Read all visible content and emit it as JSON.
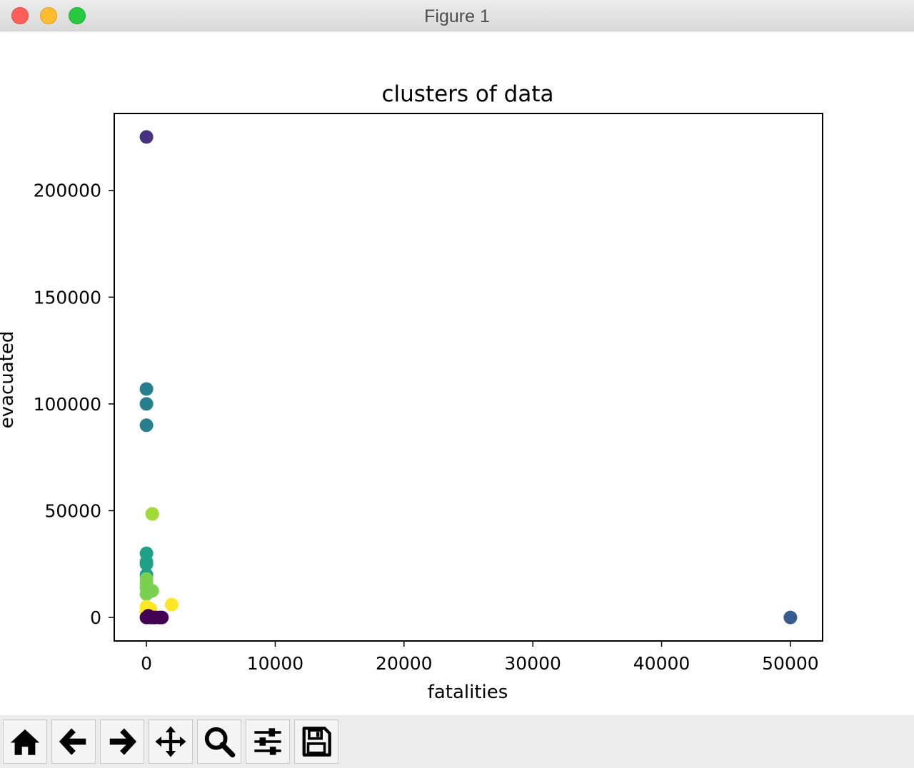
{
  "window": {
    "title": "Figure 1"
  },
  "toolbar": {
    "buttons": [
      {
        "name": "home",
        "icon": "home-icon"
      },
      {
        "name": "back",
        "icon": "arrow-left-icon"
      },
      {
        "name": "forward",
        "icon": "arrow-right-icon"
      },
      {
        "name": "pan",
        "icon": "move-icon"
      },
      {
        "name": "zoom",
        "icon": "search-icon"
      },
      {
        "name": "configure-subplots",
        "icon": "sliders-icon"
      },
      {
        "name": "save",
        "icon": "save-icon"
      }
    ]
  },
  "chart_data": {
    "type": "scatter",
    "title": "clusters of data",
    "xlabel": "fatalities",
    "ylabel": "evacuated",
    "xlim": [
      -2500,
      52500
    ],
    "ylim": [
      -11000,
      236000
    ],
    "xticks": [
      0,
      10000,
      20000,
      30000,
      40000,
      50000
    ],
    "yticks": [
      0,
      50000,
      100000,
      150000,
      200000
    ],
    "grid": false,
    "colormap": "viridis",
    "cluster_colors": {
      "c0": "#440154",
      "c1": "#46327e",
      "c2": "#365c8d",
      "c3": "#277f8e",
      "c4": "#1fa187",
      "c5": "#4ac16d",
      "c6": "#a0da39",
      "c7": "#fde725",
      "c8": "#7ad151"
    },
    "points": [
      {
        "x": 0,
        "y": 225000,
        "cluster": "c1"
      },
      {
        "x": 0,
        "y": 107000,
        "cluster": "c3"
      },
      {
        "x": 0,
        "y": 100000,
        "cluster": "c3"
      },
      {
        "x": 0,
        "y": 90000,
        "cluster": "c3"
      },
      {
        "x": 450,
        "y": 48500,
        "cluster": "c6"
      },
      {
        "x": 0,
        "y": 30000,
        "cluster": "c4"
      },
      {
        "x": 0,
        "y": 26000,
        "cluster": "c4"
      },
      {
        "x": 0,
        "y": 25000,
        "cluster": "c4"
      },
      {
        "x": 0,
        "y": 20000,
        "cluster": "c4"
      },
      {
        "x": 0,
        "y": 18000,
        "cluster": "c8"
      },
      {
        "x": 0,
        "y": 16000,
        "cluster": "c8"
      },
      {
        "x": 0,
        "y": 14000,
        "cluster": "c8"
      },
      {
        "x": 450,
        "y": 12500,
        "cluster": "c8"
      },
      {
        "x": 200,
        "y": 12000,
        "cluster": "c8"
      },
      {
        "x": 0,
        "y": 11000,
        "cluster": "c8"
      },
      {
        "x": 1950,
        "y": 6000,
        "cluster": "c7"
      },
      {
        "x": 0,
        "y": 5000,
        "cluster": "c7"
      },
      {
        "x": 300,
        "y": 4000,
        "cluster": "c7"
      },
      {
        "x": 0,
        "y": 2500,
        "cluster": "c7"
      },
      {
        "x": 50000,
        "y": 0,
        "cluster": "c2"
      },
      {
        "x": 0,
        "y": 0,
        "cluster": "c0"
      },
      {
        "x": 100,
        "y": 300,
        "cluster": "c0"
      },
      {
        "x": 300,
        "y": 0,
        "cluster": "c0"
      },
      {
        "x": 500,
        "y": 0,
        "cluster": "c0"
      },
      {
        "x": 700,
        "y": 0,
        "cluster": "c0"
      },
      {
        "x": 1000,
        "y": 0,
        "cluster": "c0"
      },
      {
        "x": 1200,
        "y": 0,
        "cluster": "c0"
      },
      {
        "x": 150,
        "y": 800,
        "cluster": "c0"
      }
    ]
  }
}
